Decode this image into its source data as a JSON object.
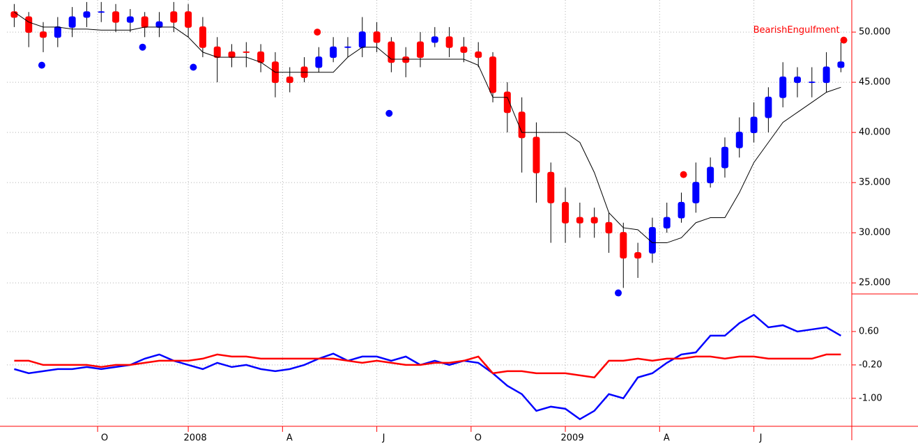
{
  "chart_data": [
    {
      "type": "candlestick",
      "x": [
        1,
        3,
        5,
        7,
        9,
        11,
        13,
        15,
        17,
        19,
        21,
        23,
        25,
        27,
        29,
        31,
        33,
        35,
        37,
        39,
        41,
        43,
        45,
        47,
        49,
        51,
        53,
        55,
        57,
        59,
        61,
        63,
        65,
        67,
        69,
        71,
        73,
        75,
        77,
        79,
        81,
        83,
        85,
        87,
        89,
        91,
        93,
        95,
        97,
        99,
        101,
        103,
        105,
        107,
        109,
        111,
        113,
        115
      ],
      "open": [
        52,
        51.5,
        50,
        49.5,
        50.5,
        51.5,
        52,
        52,
        51,
        51.5,
        50.5,
        51,
        52,
        50.5,
        48.5,
        47.5,
        48,
        48,
        47,
        45,
        45.5,
        46.5,
        47.5,
        48.5,
        48.5,
        50,
        49,
        47,
        47.5,
        49,
        49.5,
        48.5,
        48,
        47.5,
        44,
        42,
        39.5,
        36,
        33,
        31,
        31.5,
        31,
        30,
        27.5,
        28,
        30.5,
        31.5,
        33,
        35,
        36.5,
        38.5,
        40,
        41.5,
        43.5,
        45.5,
        45,
        45,
        46.5
      ],
      "high": [
        52.8,
        52,
        51,
        51.5,
        52.5,
        53,
        53,
        52.8,
        52.3,
        52,
        52,
        53,
        52.8,
        51.5,
        49.5,
        48.8,
        49,
        48.8,
        48,
        46.5,
        47.5,
        48.5,
        49.5,
        49.5,
        51.5,
        51,
        49.5,
        48.5,
        50,
        50.5,
        50.5,
        49.5,
        49,
        48,
        45,
        43.5,
        41,
        37,
        34.5,
        33,
        32.5,
        32,
        31,
        29,
        31.5,
        33,
        34,
        37,
        37.5,
        39.5,
        41.5,
        43,
        44.5,
        47,
        46.5,
        46.5,
        48,
        49
      ],
      "low": [
        50.5,
        48.5,
        48,
        48.5,
        49.5,
        50.5,
        51,
        50,
        50,
        49.5,
        49.5,
        50,
        49.5,
        47.5,
        45,
        46.5,
        46.5,
        46,
        43.5,
        44,
        45,
        46,
        47,
        47.5,
        47.5,
        48,
        46,
        45.5,
        46.5,
        48.5,
        47.5,
        47,
        46.5,
        43,
        40,
        36,
        33,
        29,
        29,
        29.5,
        29.5,
        28,
        24.5,
        25.5,
        27,
        30,
        31,
        32,
        34.5,
        35.5,
        37.5,
        39,
        40,
        42.5,
        43.5,
        43.5,
        44,
        46
      ],
      "close": [
        51.5,
        50,
        49.5,
        50.5,
        51.5,
        52,
        52,
        51,
        51.5,
        50.5,
        51,
        52,
        50.5,
        48.5,
        47.5,
        48,
        48,
        47,
        45,
        45.5,
        46.5,
        47.5,
        48.5,
        48.5,
        50,
        49,
        47,
        47.5,
        49,
        49.5,
        48.5,
        48,
        47.5,
        44,
        42,
        39.5,
        36,
        33,
        31,
        31.5,
        31,
        30,
        27.5,
        28,
        30.5,
        31.5,
        33,
        35,
        36.5,
        38.5,
        40,
        41.5,
        43.5,
        45.5,
        45,
        45,
        46.5,
        47
      ],
      "colors": [
        "#ff0000",
        "#ff0000",
        "#ff0000",
        "#0000ff",
        "#0000ff",
        "#0000ff",
        "#0000ff",
        "#ff0000",
        "#0000ff",
        "#ff0000",
        "#0000ff",
        "#ff0000",
        "#ff0000",
        "#ff0000",
        "#ff0000",
        "#ff0000",
        "#ff0000",
        "#ff0000",
        "#ff0000",
        "#ff0000",
        "#ff0000",
        "#0000ff",
        "#0000ff",
        "#0000ff",
        "#0000ff",
        "#ff0000",
        "#ff0000",
        "#ff0000",
        "#ff0000",
        "#0000ff",
        "#ff0000",
        "#ff0000",
        "#ff0000",
        "#ff0000",
        "#ff0000",
        "#ff0000",
        "#ff0000",
        "#ff0000",
        "#ff0000",
        "#ff0000",
        "#ff0000",
        "#ff0000",
        "#ff0000",
        "#ff0000",
        "#0000ff",
        "#0000ff",
        "#0000ff",
        "#0000ff",
        "#0000ff",
        "#0000ff",
        "#0000ff",
        "#0000ff",
        "#0000ff",
        "#0000ff",
        "#0000ff",
        "#0000ff",
        "#0000ff",
        "#0000ff"
      ],
      "line": {
        "color": "#000000",
        "values": [
          52,
          51,
          50.5,
          50.5,
          50.3,
          50.3,
          50.2,
          50.2,
          50.2,
          50.5,
          50.5,
          50.5,
          49.5,
          48,
          47.5,
          47.5,
          47.5,
          47,
          46,
          46,
          46,
          46,
          46,
          47.5,
          48.5,
          48.5,
          47.3,
          47.3,
          47.3,
          47.3,
          47.3,
          47.3,
          46.7,
          43.5,
          43.5,
          40,
          40,
          40,
          40,
          39,
          36,
          32,
          30.5,
          30.3,
          29,
          29,
          29.5,
          31,
          31.5,
          31.5,
          34,
          37,
          39,
          41,
          42,
          43,
          44,
          44.5
        ]
      },
      "signals": [
        {
          "x": 4.8,
          "y": 46.7,
          "color": "#0000ff"
        },
        {
          "x": 18.7,
          "y": 48.5,
          "color": "#0000ff"
        },
        {
          "x": 25.7,
          "y": 46.5,
          "color": "#0000ff"
        },
        {
          "x": 42.8,
          "y": 50.0,
          "color": "#ff0000"
        },
        {
          "x": 52.7,
          "y": 41.9,
          "color": "#0000ff"
        },
        {
          "x": 84.3,
          "y": 24.0,
          "color": "#0000ff"
        },
        {
          "x": 93.3,
          "y": 35.8,
          "color": "#ff0000"
        },
        {
          "x": 115.4,
          "y": 49.2,
          "color": "#ff0000"
        }
      ],
      "annotation": "BearishEngulfment",
      "xlim": [
        0,
        116.5
      ],
      "xticks": [
        {
          "value": 12.5,
          "label": "O"
        },
        {
          "value": 25,
          "label": "2008"
        },
        {
          "value": 38,
          "label": "A"
        },
        {
          "value": 51,
          "label": "J"
        },
        {
          "value": 64,
          "label": "O"
        },
        {
          "value": 77,
          "label": "2009"
        },
        {
          "value": 90,
          "label": "A"
        },
        {
          "value": 103,
          "label": "J"
        }
      ],
      "ylim": [
        23.9,
        53.2
      ],
      "yticks": [
        {
          "value": 25,
          "label": "25.000"
        },
        {
          "value": 30,
          "label": "30.000"
        },
        {
          "value": 35,
          "label": "35.000"
        },
        {
          "value": 40,
          "label": "40.000"
        },
        {
          "value": 45,
          "label": "45.000"
        },
        {
          "value": 50,
          "label": "50.000"
        }
      ],
      "grid": true
    },
    {
      "type": "line",
      "series": [
        {
          "color": "#0000ff",
          "values": [
            -0.3,
            -0.4,
            -0.35,
            -0.3,
            -0.3,
            -0.25,
            -0.3,
            -0.25,
            -0.2,
            -0.05,
            0.05,
            -0.1,
            -0.2,
            -0.3,
            -0.15,
            -0.25,
            -0.2,
            -0.3,
            -0.35,
            -0.3,
            -0.2,
            -0.05,
            0.07,
            -0.1,
            0.0,
            0.0,
            -0.1,
            0.0,
            -0.2,
            -0.1,
            -0.2,
            -0.1,
            -0.15,
            -0.4,
            -0.7,
            -0.9,
            -1.3,
            -1.2,
            -1.25,
            -1.5,
            -1.3,
            -0.9,
            -1.0,
            -0.5,
            -0.4,
            -0.15,
            0.05,
            0.1,
            0.5,
            0.5,
            0.8,
            1.0,
            0.7,
            0.75,
            0.6,
            0.65,
            0.7,
            0.5
          ]
        },
        {
          "color": "#ff0000",
          "values": [
            -0.1,
            -0.1,
            -0.2,
            -0.2,
            -0.2,
            -0.2,
            -0.25,
            -0.2,
            -0.2,
            -0.15,
            -0.1,
            -0.1,
            -0.1,
            -0.05,
            0.05,
            0.0,
            0.0,
            -0.05,
            -0.05,
            -0.05,
            -0.05,
            -0.05,
            -0.05,
            -0.1,
            -0.15,
            -0.1,
            -0.15,
            -0.2,
            -0.2,
            -0.15,
            -0.15,
            -0.1,
            0.0,
            -0.4,
            -0.35,
            -0.35,
            -0.4,
            -0.4,
            -0.4,
            -0.45,
            -0.5,
            -0.1,
            -0.1,
            -0.05,
            -0.1,
            -0.05,
            -0.05,
            0.0,
            0.0,
            -0.05,
            0.0,
            0.0,
            -0.05,
            -0.05,
            -0.05,
            -0.05,
            0.05,
            0.05
          ]
        }
      ],
      "ylim": [
        -1.67,
        1.5
      ],
      "yticks": [
        {
          "value": -1,
          "label": "-1.00"
        },
        {
          "value": -0.2,
          "label": "-0.20"
        },
        {
          "value": 0.6,
          "label": "0.60"
        }
      ],
      "grid": true
    }
  ]
}
